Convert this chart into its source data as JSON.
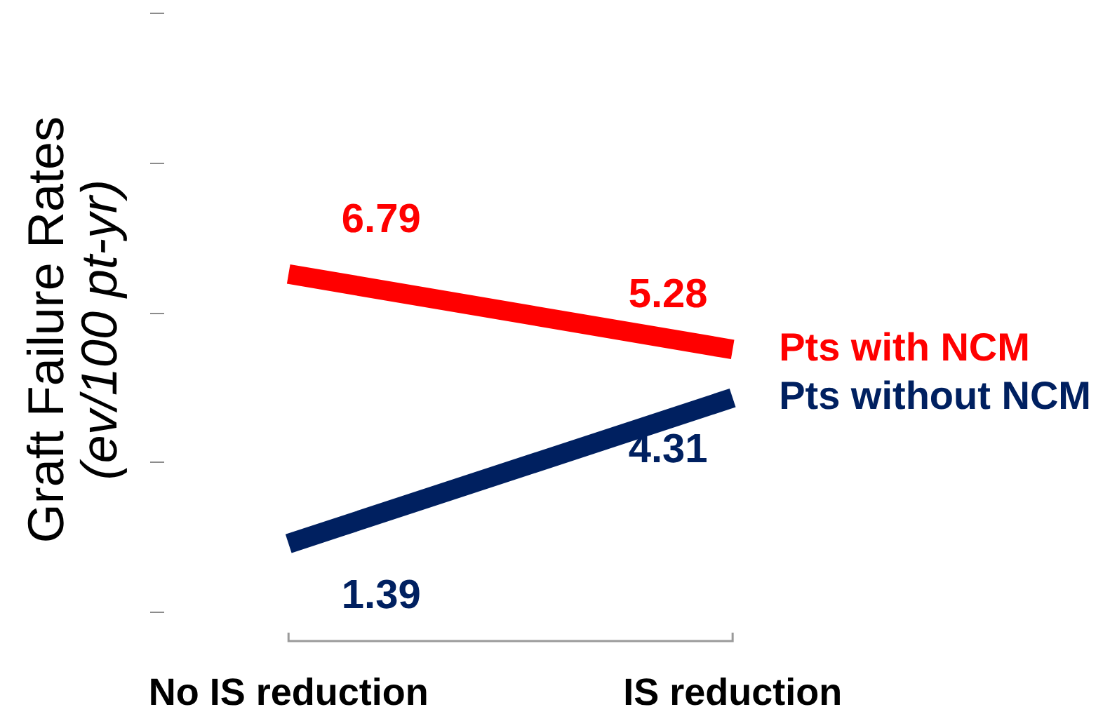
{
  "chart_data": {
    "type": "line",
    "ylabel": "Graft Failure Rates\n(ev/100 pt-yr)",
    "categories": [
      "No IS reduction",
      "IS reduction"
    ],
    "series": [
      {
        "name": "Pts with NCM",
        "color": "#ff0000",
        "values": [
          6.79,
          5.28
        ]
      },
      {
        "name": "Pts without NCM",
        "color": "#002060",
        "values": [
          1.39,
          4.31
        ]
      }
    ],
    "tick_labels": "x",
    "data_labels": true
  }
}
